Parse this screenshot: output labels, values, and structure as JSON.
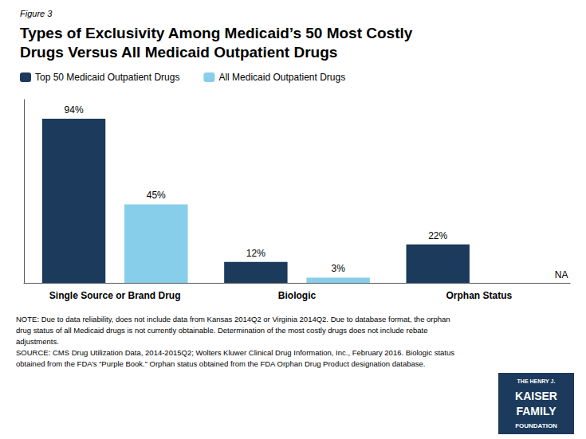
{
  "chart_data": {
    "type": "bar",
    "figure_label": "Figure 3",
    "title": "Types of Exclusivity Among Medicaid’s 50 Most Costly\nDrugs Versus All Medicaid Outpatient Drugs",
    "categories": [
      "Single Source or Brand Drug",
      "Biologic",
      "Orphan Status"
    ],
    "series": [
      {
        "name": "Top 50 Medicaid Outpatient Drugs",
        "color": "#1B3A5C",
        "values": [
          94,
          12,
          22
        ],
        "value_labels": [
          "94%",
          "12%",
          "22%"
        ]
      },
      {
        "name": "All Medicaid Outpatient Drugs",
        "color": "#87CEEB",
        "values": [
          45,
          3,
          null
        ],
        "value_labels": [
          "45%",
          "3%",
          "NA"
        ]
      }
    ],
    "ylim": [
      0,
      105
    ],
    "grid": false,
    "legend": "top",
    "data_labels": true,
    "tick_labels": "x",
    "notes": [
      "NOTE: Due to data reliability, does not include data from Kansas 2014Q2 or Virginia 2014Q2. Due to database format, the orphan",
      "drug status of all Medicaid drugs is not currently obtainable. Determination of the most costly drugs does not include rebate",
      "adjustments.",
      "SOURCE: CMS Drug Utilization Data, 2014-2015Q2; Wolters Kluwer Clinical Drug Information, Inc., February 2016. Biologic status",
      "obtained from the FDA’s “Purple Book.” Orphan status obtained from the FDA Orphan Drug Product designation database."
    ],
    "logo_text": [
      "THE HENRY J.",
      "KAISER",
      "FAMILY",
      "FOUNDATION"
    ]
  }
}
